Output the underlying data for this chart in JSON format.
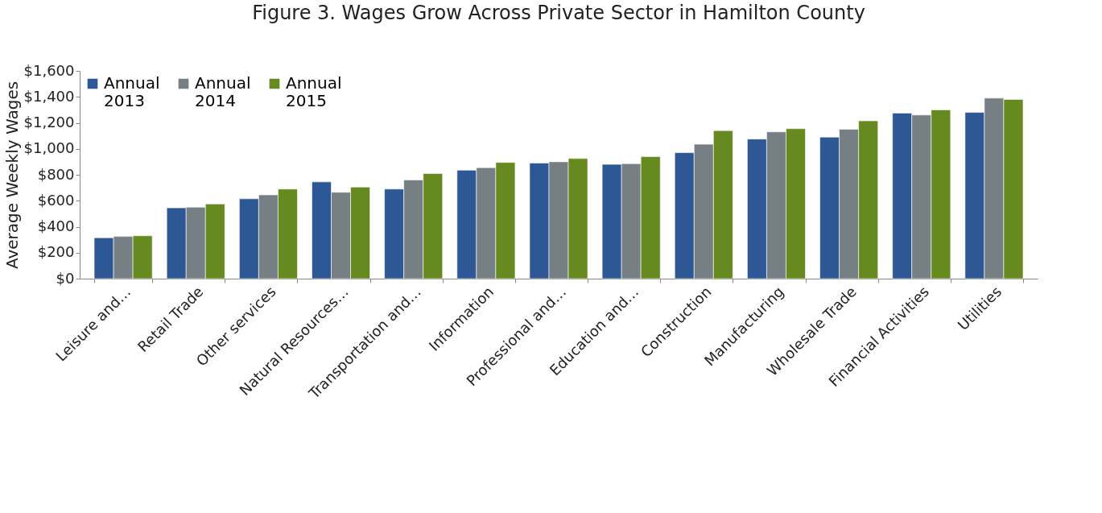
{
  "chart_data": {
    "type": "bar",
    "title": "Figure 3. Wages Grow Across Private Sector  in Hamilton County",
    "ylabel": "Average Weekly Wages",
    "categories": [
      "Leisure and…",
      "Retail Trade",
      "Other services",
      "Natural Resources…",
      "Transportation and…",
      "Information",
      "Professional and…",
      "Education and…",
      "Construction",
      "Manufacturing",
      "Wholesale Trade",
      "Financial Activities",
      "Utilities"
    ],
    "series": [
      {
        "name": "Annual 2013",
        "color": "#2e5895",
        "values": [
          315,
          545,
          615,
          745,
          690,
          835,
          890,
          880,
          970,
          1075,
          1090,
          1275,
          1280
        ]
      },
      {
        "name": "Annual 2014",
        "color": "#757f84",
        "values": [
          325,
          550,
          645,
          665,
          760,
          855,
          900,
          885,
          1035,
          1130,
          1150,
          1260,
          1390
        ]
      },
      {
        "name": "Annual 2015",
        "color": "#668a20",
        "values": [
          330,
          575,
          690,
          705,
          810,
          895,
          925,
          940,
          1140,
          1155,
          1215,
          1300,
          1380
        ]
      }
    ],
    "ylim": [
      0,
      1600
    ],
    "yticks": [
      {
        "value": 0,
        "label": "$0"
      },
      {
        "value": 200,
        "label": "$200"
      },
      {
        "value": 400,
        "label": "$400"
      },
      {
        "value": 600,
        "label": "$600"
      },
      {
        "value": 800,
        "label": "$800"
      },
      {
        "value": 1000,
        "label": "$1,000"
      },
      {
        "value": 1200,
        "label": "$1,200"
      },
      {
        "value": 1400,
        "label": "$1,400"
      },
      {
        "value": 1600,
        "label": "$1,600"
      }
    ],
    "grid": false,
    "legend": "top left"
  }
}
